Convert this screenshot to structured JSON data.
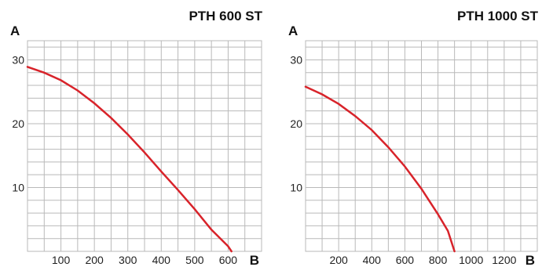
{
  "chart_data": [
    {
      "type": "line",
      "title": "PTH 600 ST",
      "ylabel": "A",
      "xlabel": "B",
      "grid": true,
      "xlim": [
        0,
        700
      ],
      "ylim": [
        0,
        33
      ],
      "x_ticks": [
        100,
        200,
        300,
        400,
        500,
        600
      ],
      "y_ticks": [
        10,
        20,
        30
      ],
      "series": [
        {
          "color": "#d8232a",
          "x": [
            0,
            50,
            100,
            150,
            200,
            250,
            300,
            350,
            400,
            450,
            500,
            550,
            600,
            610
          ],
          "y": [
            28.9,
            28.0,
            26.8,
            25.2,
            23.2,
            20.9,
            18.3,
            15.5,
            12.5,
            9.6,
            6.6,
            3.4,
            0.8,
            0
          ]
        }
      ]
    },
    {
      "type": "line",
      "title": "PTH 1000 ST",
      "ylabel": "A",
      "xlabel": "B",
      "grid": true,
      "xlim": [
        0,
        1400
      ],
      "ylim": [
        0,
        33
      ],
      "x_ticks": [
        200,
        400,
        600,
        800,
        1000,
        1200
      ],
      "y_ticks": [
        10,
        20,
        30
      ],
      "series": [
        {
          "color": "#d8232a",
          "x": [
            0,
            100,
            200,
            300,
            400,
            500,
            600,
            700,
            800,
            860,
            900
          ],
          "y": [
            25.8,
            24.6,
            23.1,
            21.2,
            19.0,
            16.3,
            13.3,
            9.8,
            5.8,
            3.2,
            0
          ]
        }
      ]
    }
  ]
}
